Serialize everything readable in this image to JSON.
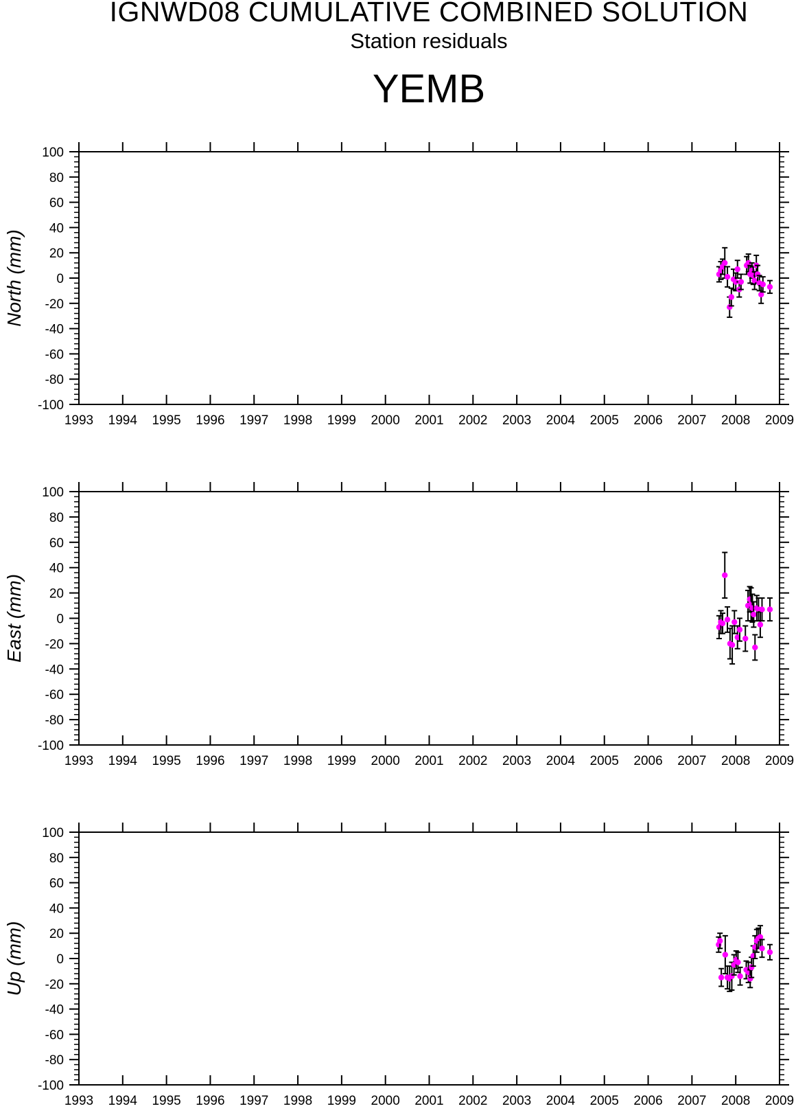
{
  "header": {
    "title": "IGNWD08 CUMULATIVE COMBINED SOLUTION",
    "subtitle": "Station residuals",
    "station": "YEMB"
  },
  "colors": {
    "point": "#ff00ff",
    "errorbar": "#000000",
    "axes": "#000000",
    "background": "#ffffff"
  },
  "chart_data": [
    {
      "type": "scatter",
      "ylabel": "North (mm)",
      "xlim": [
        1993,
        2009
      ],
      "ylim": [
        -100,
        100
      ],
      "x_ticks": [
        "1993",
        "1994",
        "1995",
        "1996",
        "1997",
        "1998",
        "1999",
        "2000",
        "2001",
        "2002",
        "2003",
        "2004",
        "2005",
        "2006",
        "2007",
        "2008",
        "2009"
      ],
      "y_ticks": [
        "-100",
        "-80",
        "-60",
        "-40",
        "-20",
        "0",
        "20",
        "40",
        "60",
        "80",
        "100"
      ],
      "grid": false,
      "series": [
        {
          "points": [
            {
              "x": 2007.62,
              "y": 3,
              "err": 6
            },
            {
              "x": 2007.66,
              "y": 6,
              "err": 7
            },
            {
              "x": 2007.7,
              "y": 9,
              "err": 6
            },
            {
              "x": 2007.75,
              "y": 12,
              "err": 12
            },
            {
              "x": 2007.81,
              "y": 1,
              "err": 8
            },
            {
              "x": 2007.86,
              "y": -23,
              "err": 8
            },
            {
              "x": 2007.9,
              "y": -15,
              "err": 7
            },
            {
              "x": 2007.95,
              "y": -1,
              "err": 8
            },
            {
              "x": 2008.0,
              "y": -3,
              "err": 7
            },
            {
              "x": 2008.04,
              "y": 7,
              "err": 7
            },
            {
              "x": 2008.08,
              "y": -9,
              "err": 6
            },
            {
              "x": 2008.12,
              "y": -3,
              "err": 6
            },
            {
              "x": 2008.25,
              "y": 10,
              "err": 7
            },
            {
              "x": 2008.29,
              "y": 12,
              "err": 7
            },
            {
              "x": 2008.33,
              "y": 3,
              "err": 7
            },
            {
              "x": 2008.37,
              "y": 6,
              "err": 6
            },
            {
              "x": 2008.4,
              "y": 2,
              "err": 7
            },
            {
              "x": 2008.43,
              "y": -2,
              "err": 7
            },
            {
              "x": 2008.47,
              "y": 10,
              "err": 8
            },
            {
              "x": 2008.5,
              "y": 3,
              "err": 7
            },
            {
              "x": 2008.54,
              "y": -4,
              "err": 6
            },
            {
              "x": 2008.58,
              "y": -13,
              "err": 7
            },
            {
              "x": 2008.62,
              "y": -5,
              "err": 6
            },
            {
              "x": 2008.78,
              "y": -7,
              "err": 5
            }
          ]
        }
      ]
    },
    {
      "type": "scatter",
      "ylabel": "East (mm)",
      "xlim": [
        1993,
        2009
      ],
      "ylim": [
        -100,
        100
      ],
      "x_ticks": [
        "1993",
        "1994",
        "1995",
        "1996",
        "1997",
        "1998",
        "1999",
        "2000",
        "2001",
        "2002",
        "2003",
        "2004",
        "2005",
        "2006",
        "2007",
        "2008",
        "2009"
      ],
      "y_ticks": [
        "-100",
        "-80",
        "-60",
        "-40",
        "-20",
        "0",
        "20",
        "40",
        "60",
        "80",
        "100"
      ],
      "grid": false,
      "series": [
        {
          "points": [
            {
              "x": 2007.62,
              "y": -7,
              "err": 9
            },
            {
              "x": 2007.66,
              "y": -3,
              "err": 9
            },
            {
              "x": 2007.7,
              "y": -4,
              "err": 8
            },
            {
              "x": 2007.75,
              "y": 34,
              "err": 18
            },
            {
              "x": 2007.81,
              "y": -1,
              "err": 10
            },
            {
              "x": 2007.87,
              "y": -20,
              "err": 12
            },
            {
              "x": 2007.92,
              "y": -21,
              "err": 15
            },
            {
              "x": 2007.97,
              "y": -3,
              "err": 9
            },
            {
              "x": 2008.04,
              "y": -15,
              "err": 9
            },
            {
              "x": 2008.09,
              "y": -9,
              "err": 9
            },
            {
              "x": 2008.22,
              "y": -16,
              "err": 10
            },
            {
              "x": 2008.28,
              "y": 10,
              "err": 12
            },
            {
              "x": 2008.32,
              "y": 15,
              "err": 10
            },
            {
              "x": 2008.35,
              "y": 11,
              "err": 13
            },
            {
              "x": 2008.38,
              "y": 8,
              "err": 11
            },
            {
              "x": 2008.41,
              "y": 3,
              "err": 10
            },
            {
              "x": 2008.44,
              "y": -23,
              "err": 10
            },
            {
              "x": 2008.48,
              "y": 8,
              "err": 10
            },
            {
              "x": 2008.52,
              "y": 7,
              "err": 9
            },
            {
              "x": 2008.56,
              "y": -5,
              "err": 10
            },
            {
              "x": 2008.6,
              "y": 7,
              "err": 9
            },
            {
              "x": 2008.78,
              "y": 7,
              "err": 9
            }
          ]
        }
      ]
    },
    {
      "type": "scatter",
      "ylabel": "Up (mm)",
      "xlim": [
        1993,
        2009
      ],
      "ylim": [
        -100,
        100
      ],
      "x_ticks": [
        "1993",
        "1994",
        "1995",
        "1996",
        "1997",
        "1998",
        "1999",
        "2000",
        "2001",
        "2002",
        "2003",
        "2004",
        "2005",
        "2006",
        "2007",
        "2008",
        "2009"
      ],
      "y_ticks": [
        "-100",
        "-80",
        "-60",
        "-40",
        "-20",
        "0",
        "20",
        "40",
        "60",
        "80",
        "100"
      ],
      "grid": false,
      "series": [
        {
          "points": [
            {
              "x": 2007.61,
              "y": 11,
              "err": 6
            },
            {
              "x": 2007.64,
              "y": 14,
              "err": 6
            },
            {
              "x": 2007.67,
              "y": -15,
              "err": 7
            },
            {
              "x": 2007.76,
              "y": 3,
              "err": 15
            },
            {
              "x": 2007.81,
              "y": -15,
              "err": 9
            },
            {
              "x": 2007.86,
              "y": -16,
              "err": 10
            },
            {
              "x": 2007.91,
              "y": -14,
              "err": 11
            },
            {
              "x": 2007.96,
              "y": -5,
              "err": 8
            },
            {
              "x": 2008.01,
              "y": -1,
              "err": 7
            },
            {
              "x": 2008.05,
              "y": -3,
              "err": 8
            },
            {
              "x": 2008.1,
              "y": -14,
              "err": 7
            },
            {
              "x": 2008.24,
              "y": -9,
              "err": 7
            },
            {
              "x": 2008.29,
              "y": -11,
              "err": 8
            },
            {
              "x": 2008.33,
              "y": -16,
              "err": 7
            },
            {
              "x": 2008.36,
              "y": -7,
              "err": 8
            },
            {
              "x": 2008.4,
              "y": 2,
              "err": 8
            },
            {
              "x": 2008.44,
              "y": 9,
              "err": 9
            },
            {
              "x": 2008.48,
              "y": 14,
              "err": 9
            },
            {
              "x": 2008.52,
              "y": 16,
              "err": 8
            },
            {
              "x": 2008.56,
              "y": 17,
              "err": 9
            },
            {
              "x": 2008.6,
              "y": 8,
              "err": 7
            },
            {
              "x": 2008.78,
              "y": 5,
              "err": 6
            }
          ]
        }
      ]
    }
  ]
}
